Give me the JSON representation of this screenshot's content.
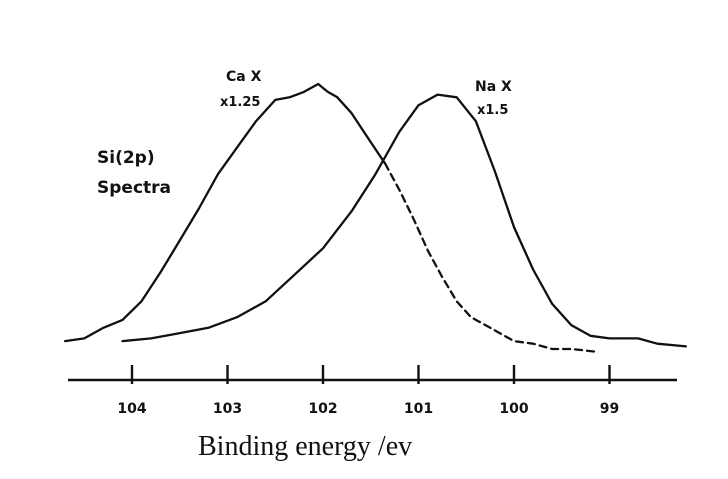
{
  "chart_data": {
    "type": "line",
    "title": "",
    "annotation": [
      "Si(2p)",
      "Spectra"
    ],
    "xlabel": "Binding energy  /ev",
    "ylabel": "",
    "x_reversed": true,
    "xlim": [
      98.2,
      104.7
    ],
    "ylim": [
      0,
      1.0
    ],
    "ticks": [
      104,
      103,
      102,
      101,
      100,
      99
    ],
    "tick_labels": [
      "104",
      "103",
      "102",
      "101",
      "100",
      "99"
    ],
    "show_yaxis": false,
    "grid": false,
    "series": [
      {
        "name": "CaX",
        "scale_label": "x1.25",
        "label_lines": [
          "Ca X",
          "x1.25"
        ],
        "style": "solid",
        "x": [
          104.7,
          104.5,
          104.3,
          104.1,
          103.9,
          103.7,
          103.5,
          103.3,
          103.1,
          102.9,
          102.7,
          102.5,
          102.35,
          102.2,
          102.05,
          101.95,
          101.85,
          101.7,
          101.5,
          101.35
        ],
        "y": [
          0.03,
          0.04,
          0.08,
          0.11,
          0.18,
          0.29,
          0.41,
          0.53,
          0.66,
          0.76,
          0.86,
          0.94,
          0.95,
          0.97,
          1.0,
          0.97,
          0.95,
          0.89,
          0.78,
          0.7
        ]
      },
      {
        "name": "CaX (extrapolated)",
        "style": "dashed",
        "x": [
          101.35,
          101.2,
          101.05,
          100.9,
          100.75,
          100.6,
          100.45,
          100.3,
          100.15,
          100.0,
          99.8,
          99.6,
          99.4,
          99.15
        ],
        "y": [
          0.7,
          0.6,
          0.49,
          0.37,
          0.27,
          0.18,
          0.12,
          0.09,
          0.06,
          0.03,
          0.02,
          0.0,
          0.0,
          -0.01
        ]
      },
      {
        "name": "NaX",
        "scale_label": "x1.5",
        "label_lines": [
          "Na X",
          "x1.5"
        ],
        "style": "solid",
        "x": [
          104.1,
          103.8,
          103.5,
          103.2,
          102.9,
          102.6,
          102.3,
          102.0,
          101.7,
          101.45,
          101.2,
          101.0,
          100.8,
          100.6,
          100.4,
          100.2,
          100.0,
          99.8,
          99.6,
          99.4,
          99.2,
          99.0,
          98.7,
          98.5,
          98.2
        ],
        "y": [
          0.03,
          0.04,
          0.06,
          0.08,
          0.12,
          0.18,
          0.28,
          0.38,
          0.52,
          0.66,
          0.82,
          0.92,
          0.96,
          0.95,
          0.86,
          0.67,
          0.46,
          0.3,
          0.17,
          0.09,
          0.05,
          0.04,
          0.04,
          0.02,
          0.01
        ]
      }
    ]
  },
  "colors": {
    "ink": "#111111",
    "background": "#ffffff"
  }
}
